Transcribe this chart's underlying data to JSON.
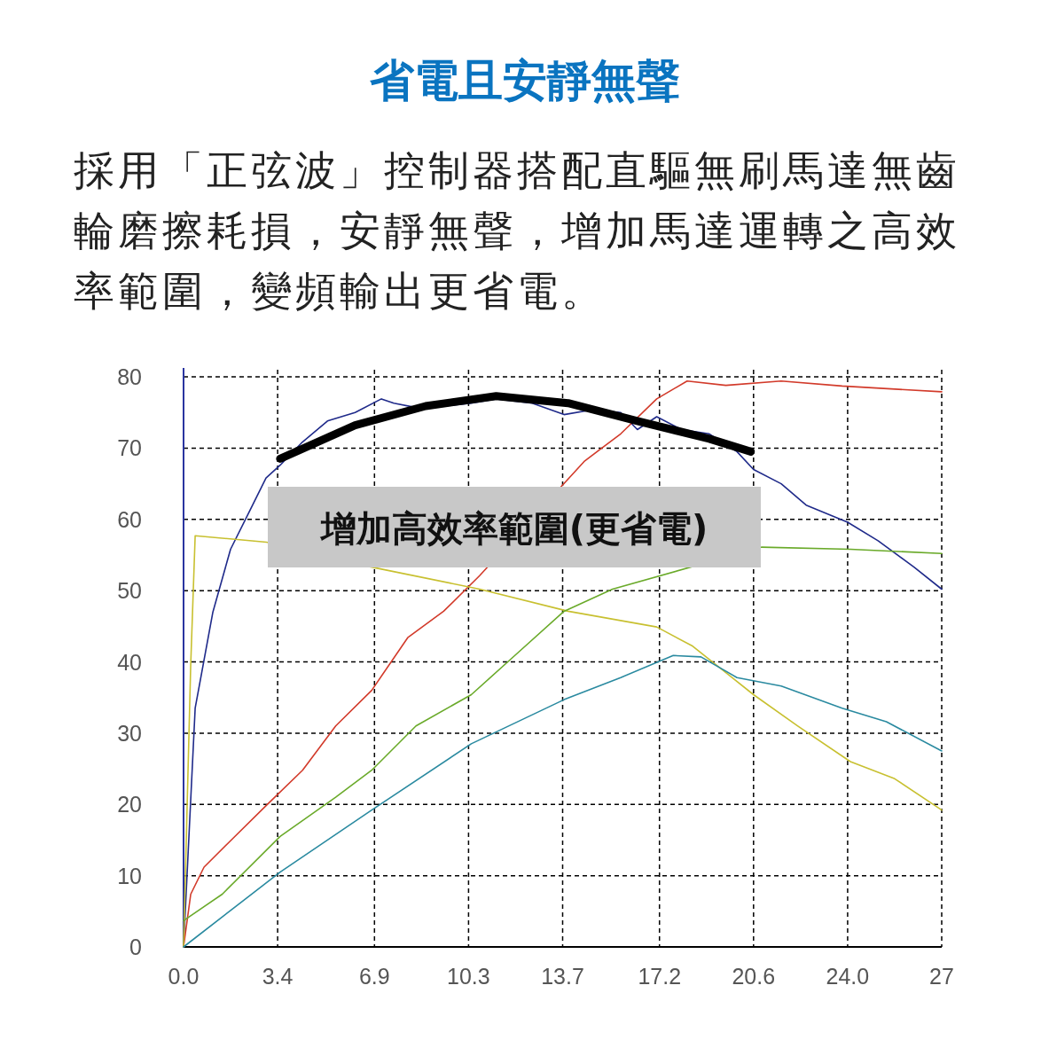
{
  "chart_data": {
    "type": "line",
    "title": "省電且安靜無聲",
    "subtitle": "採用「正弦波」控制器搭配直驅無刷馬達無齒輪磨擦耗損，安靜無聲，增加馬達運轉之高效率範圍，變頻輸出更省電。",
    "annotations": [
      "增加高效率範圍(更省電)"
    ],
    "xlim": [
      0,
      27.4
    ],
    "ylim": [
      0,
      80
    ],
    "xticks": [
      {
        "value": 0,
        "label": "0.0"
      },
      {
        "value": 3.4,
        "label": "3.4"
      },
      {
        "value": 6.9,
        "label": "6.9"
      },
      {
        "value": 10.3,
        "label": "10.3"
      },
      {
        "value": 13.7,
        "label": "13.7"
      },
      {
        "value": 17.2,
        "label": "17.2"
      },
      {
        "value": 20.6,
        "label": "20.6"
      },
      {
        "value": 24.0,
        "label": "24.0"
      },
      {
        "value": 27.4,
        "label": "27"
      }
    ],
    "yticks": [
      0,
      10,
      20,
      30,
      40,
      50,
      60,
      70,
      80
    ],
    "grid": true,
    "line_style": "solid",
    "marker": "none",
    "series": [
      {
        "color": "#1f2a8a",
        "x": [
          0,
          0.42,
          1.06,
          1.7,
          2.34,
          2.98,
          3.49,
          4.26,
          5.2,
          6.2,
          7.15,
          7.6,
          8.4,
          9.4,
          10.4,
          11.3,
          12.6,
          13.75,
          14.8,
          15.8,
          16.4,
          17.1,
          18,
          19,
          20,
          20.6,
          21.6,
          22.5,
          24,
          25.1,
          26.4,
          27.4
        ],
        "values": [
          0,
          33.5,
          47,
          55.8,
          60.8,
          65.8,
          67.6,
          70.7,
          73.8,
          75,
          76.9,
          76.3,
          75.7,
          75.9,
          76.3,
          76.9,
          76.3,
          74.7,
          75.4,
          75,
          72.6,
          74.4,
          72.6,
          72,
          69.5,
          67,
          65,
          62,
          59.6,
          57,
          53.3,
          50.2
        ]
      },
      {
        "color": "#d23a2a",
        "x": [
          0,
          0.26,
          0.74,
          1.7,
          3,
          4.3,
          5.5,
          6.8,
          8.1,
          9.4,
          10.7,
          14.5,
          15.8,
          17.1,
          18.2,
          19.6,
          21.6,
          23.8,
          27.4
        ],
        "values": [
          0,
          7.4,
          11.2,
          14.9,
          19.9,
          24.8,
          31,
          36,
          43.4,
          47.1,
          52.1,
          68.2,
          72,
          76.9,
          79.4,
          78.8,
          79.4,
          78.7,
          77.9
        ]
      },
      {
        "color": "#c8c030",
        "x": [
          0,
          0.26,
          0.42,
          3,
          6.8,
          10.7,
          13.9,
          17.1,
          18.4,
          20.6,
          22.2,
          24.1,
          25.7,
          27.4
        ],
        "values": [
          0,
          39.7,
          57.7,
          56.8,
          53.3,
          50.2,
          47.1,
          44.9,
          42.2,
          35.4,
          31,
          26,
          23.6,
          19.2
        ]
      },
      {
        "color": "#6aaa2a",
        "x": [
          0,
          1.4,
          3.49,
          5.5,
          6.8,
          8.4,
          10.4,
          12,
          13.75,
          15.5,
          20.9,
          24.1,
          27.4
        ],
        "values": [
          3.7,
          7.4,
          15.5,
          21,
          24.8,
          31,
          35.4,
          41,
          47.1,
          50.2,
          56.1,
          55.8,
          55.2
        ]
      },
      {
        "color": "#2a8aa0",
        "x": [
          0,
          3.49,
          6.8,
          10.4,
          13.75,
          15.8,
          17.7,
          18.7,
          20,
          21.6,
          23.8,
          25.4,
          27.4
        ],
        "values": [
          0,
          10.5,
          19.2,
          28.5,
          34.7,
          37.8,
          40.9,
          40.7,
          37.8,
          36.6,
          33.5,
          31.6,
          27.5
        ]
      },
      {
        "color": "#000000",
        "x": [
          3.49,
          6.2,
          8.75,
          11.3,
          13.9,
          16.4,
          19,
          20.5
        ],
        "values": [
          68.5,
          73.2,
          75.9,
          77.3,
          76.3,
          73.8,
          71.3,
          69.5
        ]
      }
    ]
  }
}
